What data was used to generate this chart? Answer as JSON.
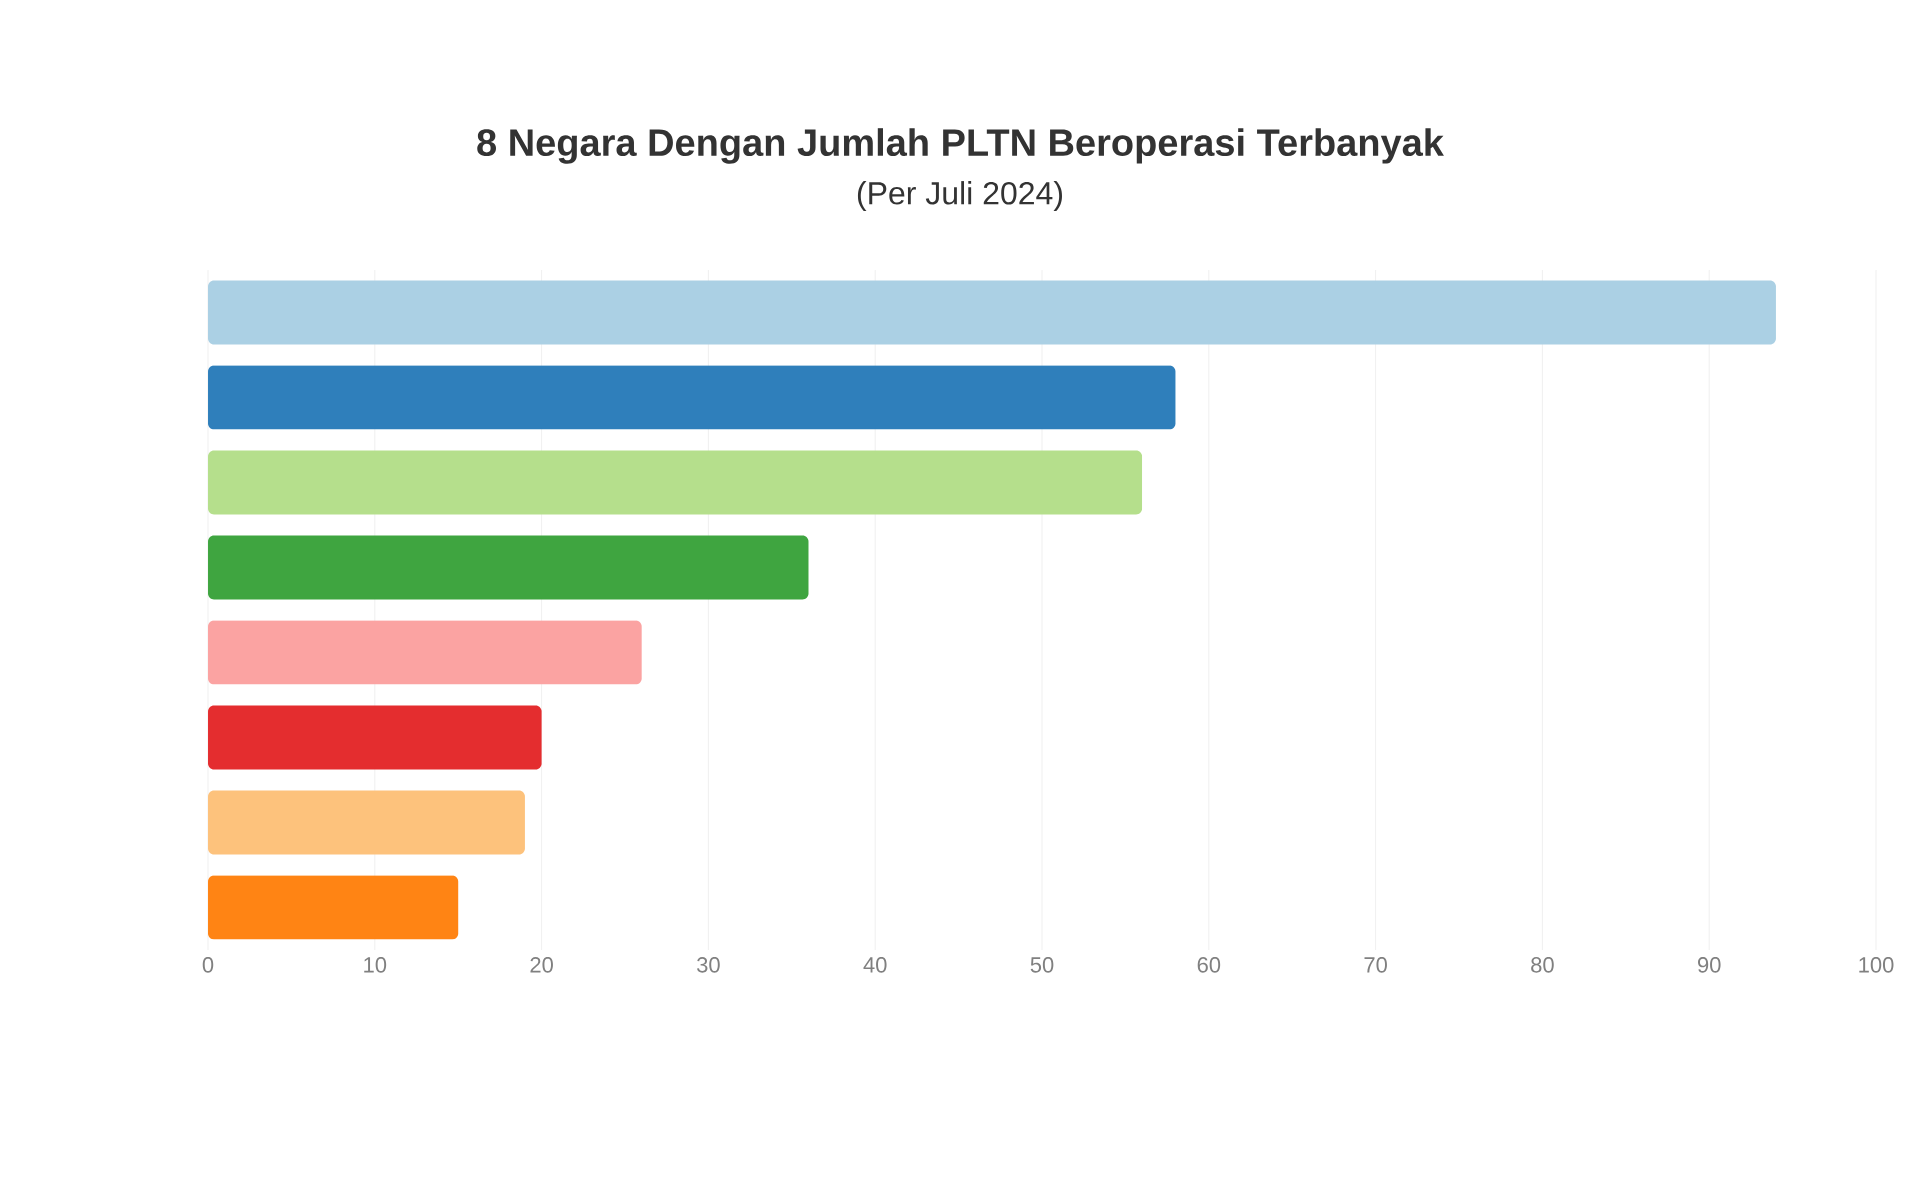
{
  "chart_data": {
    "type": "bar",
    "orientation": "horizontal",
    "title": "8 Negara Dengan Jumlah PLTN Beroperasi Terbanyak",
    "subtitle": "(Per Juli 2024)",
    "categories": [
      null,
      null,
      null,
      null,
      null,
      null,
      null,
      null
    ],
    "values": [
      94,
      58,
      56,
      36,
      26,
      20,
      19,
      15
    ],
    "colors": [
      "#abd0e4",
      "#2f7fbb",
      "#b5df8c",
      "#3fa540",
      "#fba3a2",
      "#e42d2f",
      "#fdc27c",
      "#ff8414"
    ],
    "xlim": [
      0,
      100
    ],
    "xticks": [
      0,
      10,
      20,
      30,
      40,
      50,
      60,
      70,
      80,
      90,
      100
    ],
    "grid": "x"
  }
}
